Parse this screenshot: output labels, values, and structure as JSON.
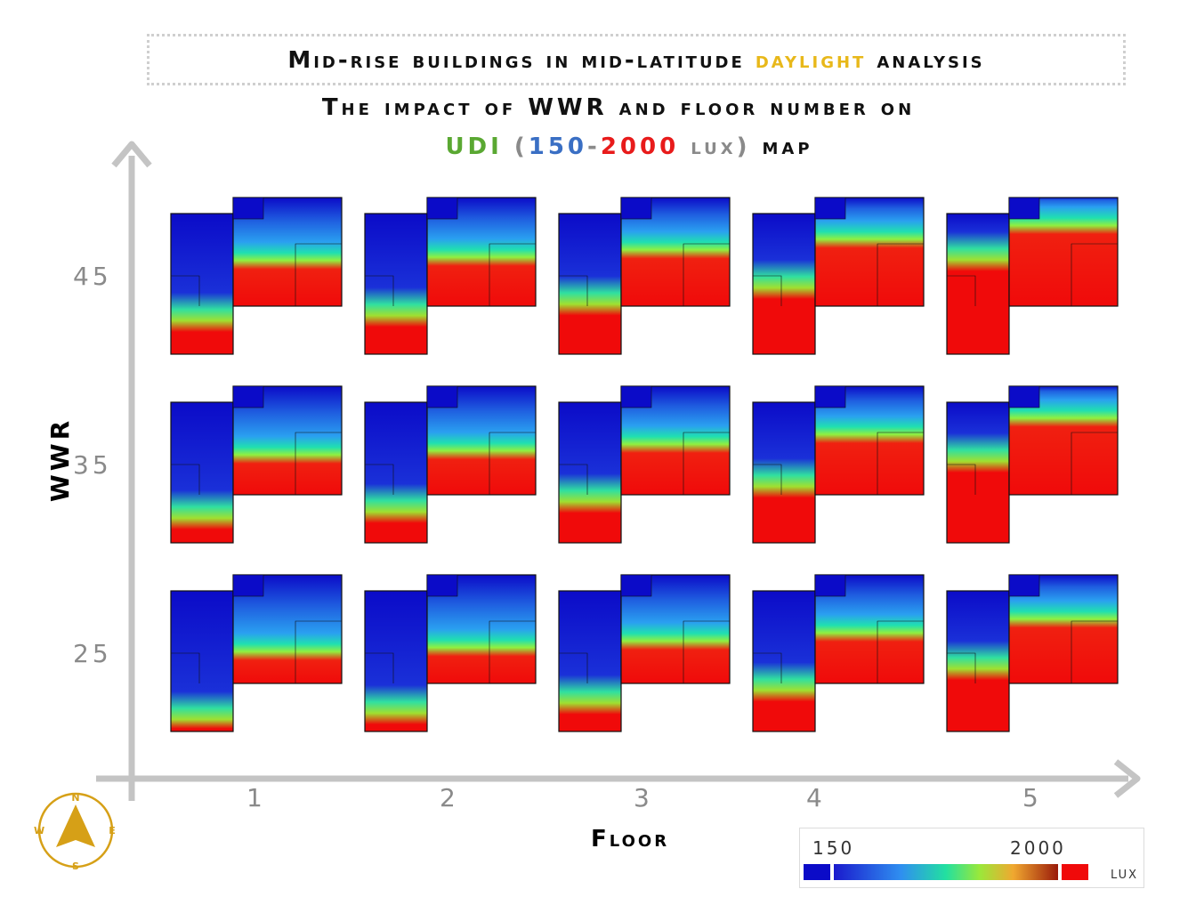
{
  "header": {
    "title_part1": "Mid-rise buildings in mid-latitude ",
    "title_highlight": "daylight",
    "title_part2": " analysis",
    "subtitle_line1": "The impact of WWR and floor number on",
    "subtitle_udi": "UDI",
    "subtitle_open": " (",
    "subtitle_low": "150",
    "subtitle_dash": "-",
    "subtitle_high": "2000",
    "subtitle_unit": " lux",
    "subtitle_close": ")",
    "subtitle_end": " map"
  },
  "colors": {
    "highlight": "#e8b81a",
    "udi": "#5aa832",
    "low": "#3a6fc4",
    "high": "#e81b1b",
    "unit": "#8a8a8a",
    "axis": "#c4c4c4",
    "compass": "#d6a017"
  },
  "chart_data": {
    "type": "heatmap",
    "title": "UDI (150-2000 lux) map",
    "xlabel": "Floor",
    "ylabel": "WWR",
    "x": [
      1,
      2,
      3,
      4,
      5
    ],
    "y": [
      25,
      35,
      45
    ],
    "x_tick_labels": [
      "1",
      "2",
      "3",
      "4",
      "5"
    ],
    "y_tick_labels": [
      "45",
      "35",
      "25"
    ],
    "colorbar": {
      "min_label": "150",
      "max_label": "2000",
      "unit": "lux"
    },
    "daylight_intensity_index": [
      {
        "wwr": 45,
        "values": [
          0.32,
          0.36,
          0.45,
          0.58,
          0.8
        ]
      },
      {
        "wwr": 35,
        "values": [
          0.25,
          0.3,
          0.38,
          0.5,
          0.7
        ]
      },
      {
        "wwr": 25,
        "values": [
          0.15,
          0.2,
          0.28,
          0.38,
          0.55
        ]
      }
    ]
  },
  "compass": {
    "n": "N",
    "s": "S",
    "e": "E",
    "w": "W"
  }
}
